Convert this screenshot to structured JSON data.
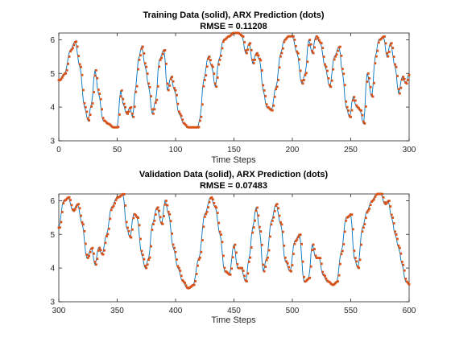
{
  "colors": {
    "solid_line": "#0072BD",
    "dots": "#D95319",
    "axes": "#262626",
    "background": "#ffffff"
  },
  "chart_data": [
    {
      "type": "line",
      "title_line1": "Training Data (solid), ARX Prediction (dots)",
      "title_line2": "RMSE = 0.11208",
      "xlabel": "Time Steps",
      "ylabel": "",
      "xlim": [
        0,
        300
      ],
      "ylim": [
        3,
        6.2
      ],
      "xticks": [
        0,
        50,
        100,
        150,
        200,
        250,
        300
      ],
      "xtick_labels": [
        "0",
        "50",
        "100",
        "150",
        "200",
        "250",
        "300"
      ],
      "yticks": [
        3,
        4,
        5,
        6
      ],
      "ytick_labels": [
        "3",
        "4",
        "5",
        "6"
      ],
      "grid": false,
      "key_points": {
        "x": [
          0,
          5,
          10,
          14,
          18,
          22,
          25,
          28,
          31,
          34,
          38,
          42,
          46,
          50,
          53,
          55,
          58,
          61,
          63,
          66,
          68,
          71,
          74,
          77,
          80,
          83,
          86,
          90,
          93,
          96,
          99,
          103,
          107,
          110,
          113,
          116,
          119,
          121,
          124,
          128,
          131,
          134,
          137,
          141,
          145,
          149,
          153,
          157,
          160,
          163,
          166,
          169,
          172,
          175,
          178,
          182,
          186,
          190,
          193,
          196,
          200,
          204,
          208,
          211,
          214,
          217,
          220,
          224,
          228,
          232,
          236,
          240,
          243,
          246,
          249,
          252,
          255,
          258,
          261,
          264,
          268,
          271,
          274,
          278,
          281,
          284,
          288,
          291,
          294,
          297,
          300
        ],
        "y": [
          4.8,
          5.0,
          5.7,
          5.95,
          5.2,
          4.0,
          3.6,
          4.1,
          5.1,
          4.4,
          3.6,
          3.5,
          3.4,
          3.4,
          4.5,
          4.1,
          3.8,
          4.0,
          3.7,
          4.6,
          5.4,
          5.8,
          5.2,
          4.6,
          3.8,
          4.2,
          5.4,
          5.7,
          4.5,
          4.9,
          4.5,
          3.8,
          3.5,
          3.4,
          3.4,
          3.4,
          3.4,
          3.7,
          4.8,
          5.5,
          5.2,
          4.6,
          5.4,
          6.0,
          6.1,
          6.2,
          6.2,
          6.1,
          5.6,
          5.9,
          5.3,
          5.6,
          5.4,
          4.5,
          4.0,
          3.9,
          4.6,
          5.6,
          6.0,
          6.1,
          6.1,
          5.6,
          4.7,
          5.0,
          6.0,
          5.6,
          6.1,
          5.9,
          5.2,
          4.6,
          5.5,
          5.8,
          5.0,
          4.0,
          3.7,
          4.3,
          4.0,
          3.9,
          3.5,
          5.0,
          4.3,
          5.5,
          6.0,
          6.1,
          5.5,
          5.9,
          5.2,
          4.4,
          4.9,
          4.7,
          5.0
        ]
      }
    },
    {
      "type": "line",
      "title_line1": "Validation Data (solid), ARX Prediction (dots)",
      "title_line2": "RMSE = 0.07483",
      "xlabel": "Time Steps",
      "ylabel": "",
      "xlim": [
        300,
        600
      ],
      "ylim": [
        3,
        6.2
      ],
      "xticks": [
        300,
        350,
        400,
        450,
        500,
        550,
        600
      ],
      "xtick_labels": [
        "300",
        "350",
        "400",
        "450",
        "500",
        "550",
        "600"
      ],
      "yticks": [
        3,
        4,
        5,
        6
      ],
      "ytick_labels": [
        "3",
        "4",
        "5",
        "6"
      ],
      "grid": false,
      "key_points": {
        "x": [
          300,
          304,
          308,
          312,
          316,
          320,
          324,
          328,
          331,
          334,
          337,
          341,
          345,
          350,
          355,
          358,
          361,
          364,
          367,
          371,
          374,
          377,
          380,
          384,
          388,
          391,
          394,
          398,
          402,
          406,
          410,
          415,
          420,
          425,
          430,
          434,
          438,
          442,
          446,
          450,
          453,
          456,
          460,
          463,
          466,
          469,
          472,
          475,
          478,
          482,
          486,
          490,
          494,
          498,
          502,
          506,
          510,
          514,
          517,
          520,
          523,
          526,
          530,
          534,
          538,
          542,
          546,
          550,
          553,
          556,
          560,
          564,
          568,
          572,
          576,
          579,
          582,
          585,
          588,
          591,
          594,
          597,
          600
        ],
        "y": [
          5.2,
          6.0,
          6.1,
          5.7,
          5.9,
          5.3,
          4.3,
          4.6,
          4.1,
          4.6,
          4.4,
          5.0,
          5.8,
          6.1,
          6.2,
          5.2,
          4.9,
          5.6,
          5.5,
          4.4,
          4.0,
          4.3,
          5.3,
          5.8,
          5.3,
          6.0,
          5.6,
          4.6,
          4.0,
          3.6,
          3.4,
          3.5,
          4.3,
          5.6,
          6.1,
          5.8,
          5.0,
          3.9,
          3.8,
          4.7,
          4.0,
          4.0,
          3.6,
          4.3,
          5.2,
          5.8,
          5.1,
          3.9,
          4.3,
          5.4,
          5.9,
          5.3,
          4.2,
          3.9,
          4.8,
          5.0,
          3.6,
          3.7,
          4.7,
          4.3,
          4.3,
          3.8,
          3.6,
          3.5,
          3.6,
          4.5,
          5.5,
          5.6,
          4.3,
          4.0,
          5.2,
          5.7,
          6.0,
          6.2,
          6.2,
          5.9,
          6.0,
          5.5,
          5.0,
          4.6,
          4.1,
          3.6,
          3.5
        ]
      }
    }
  ]
}
